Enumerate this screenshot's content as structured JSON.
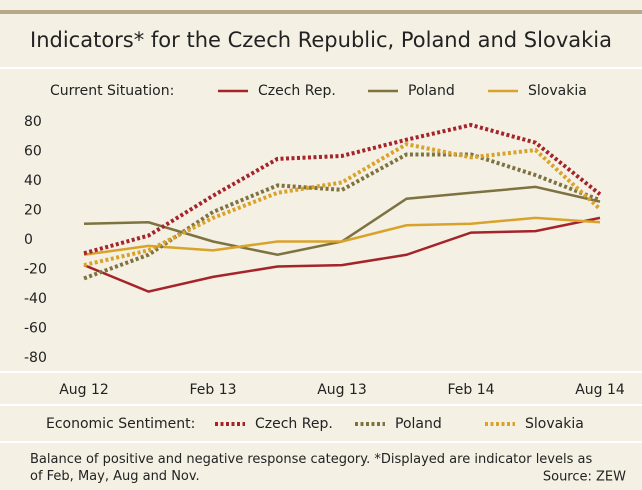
{
  "chart_data": {
    "type": "line",
    "title": "Indicators* for the Czech Republic, Poland and Slovakia",
    "legend_titles": {
      "solid": "Current Situation:",
      "dotted": "Economic Sentiment:"
    },
    "categories": [
      "Aug 12",
      null,
      "Feb 13",
      null,
      "Aug 13",
      null,
      "Feb 14",
      null,
      "Aug 14"
    ],
    "series": [
      {
        "name": "Czech Rep.",
        "color": "#a5242a",
        "style": "solid",
        "values": [
          -17,
          -35,
          -25,
          -18,
          -17,
          -10,
          5,
          6,
          15
        ]
      },
      {
        "name": "Poland",
        "color": "#7d7240",
        "style": "solid",
        "values": [
          11,
          12,
          -1,
          -10,
          -1,
          28,
          32,
          36,
          26
        ]
      },
      {
        "name": "Slovakia",
        "color": "#d9a22a",
        "style": "solid",
        "values": [
          -10,
          -4,
          -7,
          -1,
          -1,
          10,
          11,
          15,
          12
        ]
      },
      {
        "name": "Czech Rep.",
        "color": "#a5242a",
        "style": "dotted",
        "values": [
          -9,
          3,
          30,
          55,
          57,
          68,
          78,
          66,
          31
        ]
      },
      {
        "name": "Poland",
        "color": "#7d7240",
        "style": "dotted",
        "values": [
          -26,
          -10,
          19,
          37,
          34,
          58,
          58,
          44,
          27
        ]
      },
      {
        "name": "Slovakia",
        "color": "#d9a22a",
        "style": "dotted",
        "values": [
          -17,
          -7,
          15,
          32,
          39,
          65,
          56,
          61,
          21
        ]
      }
    ],
    "ylim": [
      -80,
      80
    ],
    "yticks": [
      80,
      60,
      40,
      20,
      0,
      -20,
      -40,
      -60,
      -80
    ],
    "grid": false,
    "footnote": "Balance of positive and negative response category. *Displayed are indicator levels as of Feb, May, Aug and Nov.",
    "source": "Source: ZEW"
  }
}
